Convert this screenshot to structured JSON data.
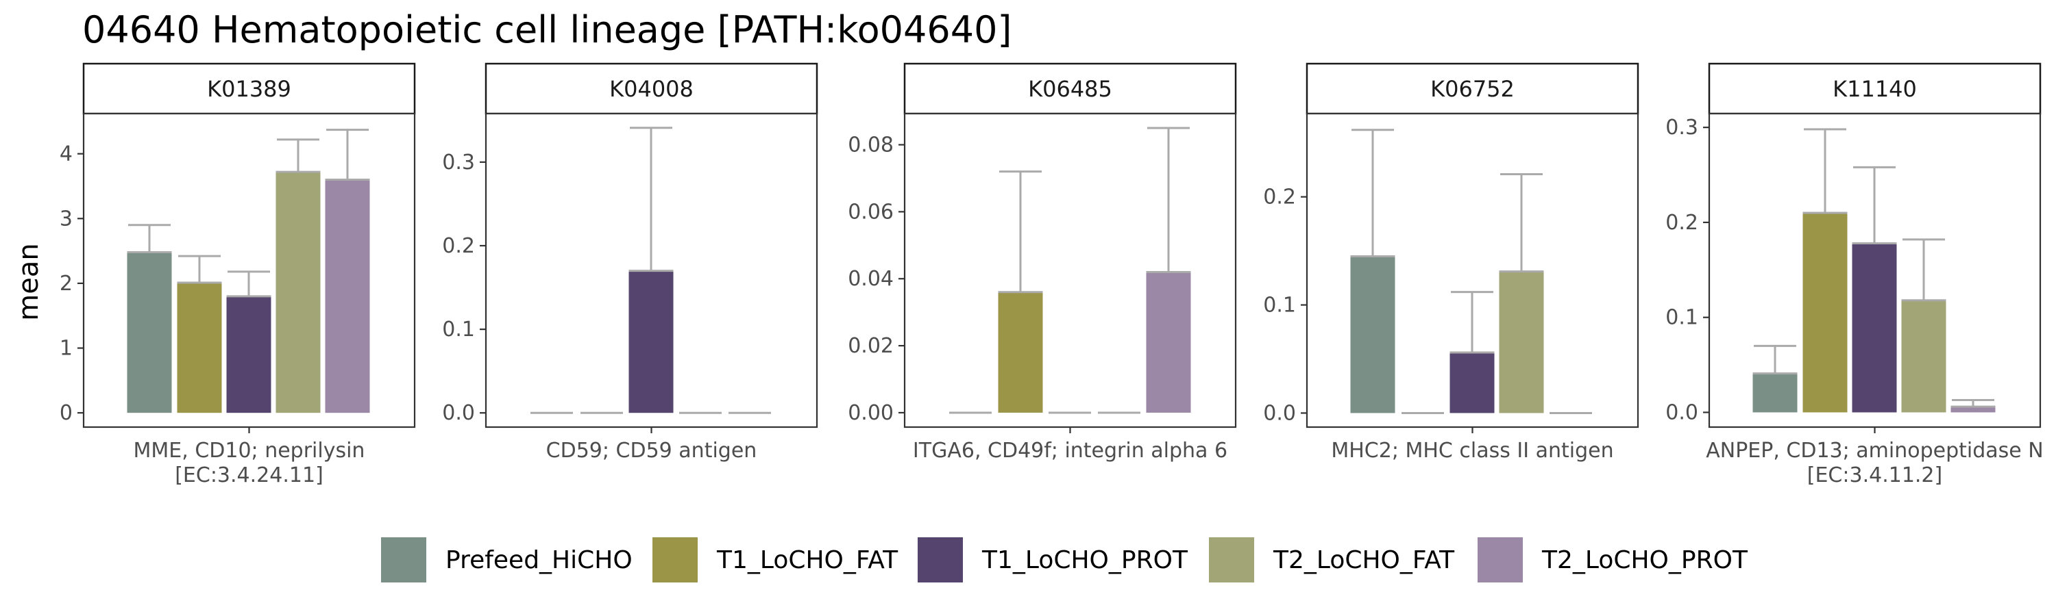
{
  "chart_data": {
    "type": "bar",
    "title": "04640 Hematopoietic cell lineage [PATH:ko04640]",
    "ylabel": "mean",
    "groups": [
      "Prefeed_HiCHO",
      "T1_LoCHO_FAT",
      "T1_LoCHO_PROT",
      "T2_LoCHO_FAT",
      "T2_LoCHO_PROT"
    ],
    "colors": {
      "Prefeed_HiCHO": "#7a8f86",
      "T1_LoCHO_FAT": "#9b9548",
      "T1_LoCHO_PROT": "#55446e",
      "T2_LoCHO_FAT": "#a2a576",
      "T2_LoCHO_PROT": "#9b87a6"
    },
    "error_bar_color": "#aaaaaa",
    "legend_position": "bottom",
    "grid": false,
    "panels": [
      {
        "strip": "K01389",
        "xlabel": [
          "MME, CD10; neprilysin",
          "[EC:3.4.24.11]"
        ],
        "ylim": [
          -0.22,
          4.62
        ],
        "yticks": [
          0,
          1,
          2,
          3,
          4
        ],
        "tick_labels": [
          "0",
          "1",
          "2",
          "3",
          "4"
        ],
        "values": [
          2.48,
          2.01,
          1.8,
          3.72,
          3.6
        ],
        "errors": [
          2.9,
          2.42,
          2.18,
          4.22,
          4.37
        ]
      },
      {
        "strip": "K04008",
        "xlabel": [
          "CD59; CD59 antigen"
        ],
        "ylim": [
          -0.017,
          0.358
        ],
        "yticks": [
          0,
          0.1,
          0.2,
          0.3
        ],
        "tick_labels": [
          "0.0",
          "0.1",
          "0.2",
          "0.3"
        ],
        "values": [
          0,
          0,
          0.17,
          0,
          0
        ],
        "errors": [
          null,
          null,
          0.341,
          null,
          null
        ]
      },
      {
        "strip": "K06485",
        "xlabel": [
          "ITGA6, CD49f; integrin alpha 6"
        ],
        "ylim": [
          -0.0043,
          0.0893
        ],
        "yticks": [
          0,
          0.02,
          0.04,
          0.06,
          0.08
        ],
        "tick_labels": [
          "0.00",
          "0.02",
          "0.04",
          "0.06",
          "0.08"
        ],
        "values": [
          0,
          0.036,
          0,
          0,
          0.042
        ],
        "errors": [
          null,
          0.072,
          null,
          null,
          0.085
        ]
      },
      {
        "strip": "K06752",
        "xlabel": [
          "MHC2; MHC class II antigen"
        ],
        "ylim": [
          -0.013,
          0.277
        ],
        "yticks": [
          0,
          0.1,
          0.2
        ],
        "tick_labels": [
          "0.0",
          "0.1",
          "0.2"
        ],
        "values": [
          0.145,
          0,
          0.056,
          0.131,
          0
        ],
        "errors": [
          0.262,
          null,
          0.112,
          0.221,
          null
        ]
      },
      {
        "strip": "K11140",
        "xlabel": [
          "ANPEP, CD13; aminopeptidase N",
          "[EC:3.4.11.2]"
        ],
        "ylim": [
          -0.0155,
          0.3145
        ],
        "yticks": [
          0,
          0.1,
          0.2,
          0.3
        ],
        "tick_labels": [
          "0.0",
          "0.1",
          "0.2",
          "0.3"
        ],
        "values": [
          0.041,
          0.21,
          0.178,
          0.118,
          0.006
        ],
        "errors": [
          0.07,
          0.298,
          0.258,
          0.182,
          0.013
        ]
      }
    ]
  }
}
